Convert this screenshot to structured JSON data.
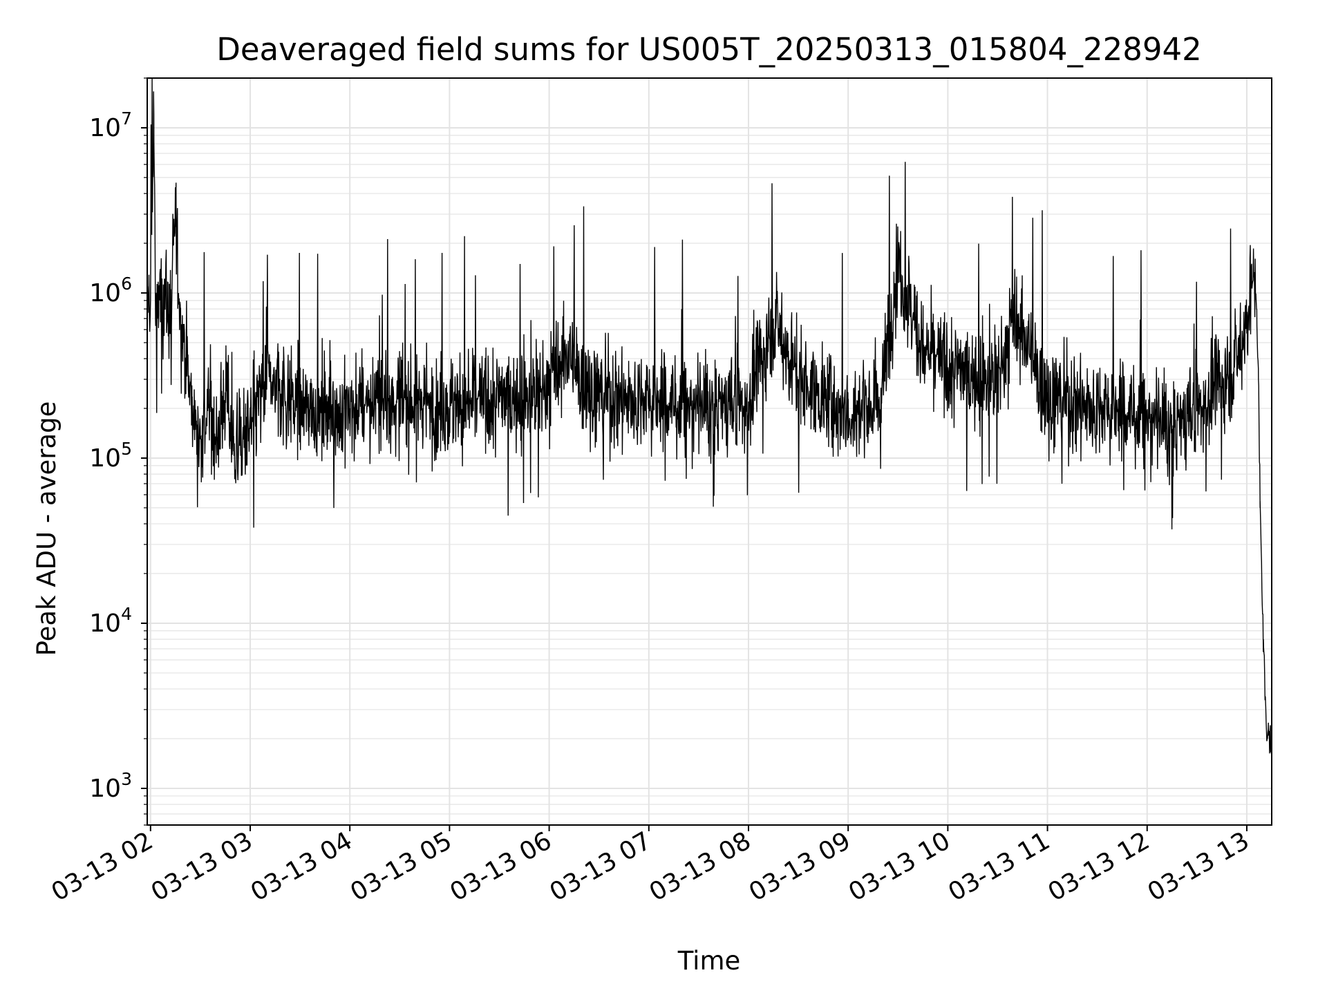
{
  "chart_data": {
    "type": "line",
    "title": "Deaveraged field sums for US005T_20250313_015804_228942",
    "xlabel": "Time",
    "ylabel": "Peak ADU - average",
    "yscale": "log",
    "ylim": [
      600,
      20000000
    ],
    "xlim": [
      "2025-03-13 01:58",
      "2025-03-13 13:15"
    ],
    "grid": true,
    "line_color": "#000000",
    "grid_color": "#e3e3e3",
    "x_ticks": [
      {
        "value": "2025-03-13 02:00",
        "label": "03-13 02"
      },
      {
        "value": "2025-03-13 03:00",
        "label": "03-13 03"
      },
      {
        "value": "2025-03-13 04:00",
        "label": "03-13 04"
      },
      {
        "value": "2025-03-13 05:00",
        "label": "03-13 05"
      },
      {
        "value": "2025-03-13 06:00",
        "label": "03-13 06"
      },
      {
        "value": "2025-03-13 07:00",
        "label": "03-13 07"
      },
      {
        "value": "2025-03-13 08:00",
        "label": "03-13 08"
      },
      {
        "value": "2025-03-13 09:00",
        "label": "03-13 09"
      },
      {
        "value": "2025-03-13 10:00",
        "label": "03-13 10"
      },
      {
        "value": "2025-03-13 11:00",
        "label": "03-13 11"
      },
      {
        "value": "2025-03-13 12:00",
        "label": "03-13 12"
      },
      {
        "value": "2025-03-13 13:00",
        "label": "03-13 13"
      }
    ],
    "y_ticks": [
      {
        "value": 1000,
        "base": "10",
        "exponent": "3"
      },
      {
        "value": 10000,
        "base": "10",
        "exponent": "4"
      },
      {
        "value": 100000,
        "base": "10",
        "exponent": "5"
      },
      {
        "value": 1000000,
        "base": "10",
        "exponent": "6"
      },
      {
        "value": 10000000,
        "base": "10",
        "exponent": "7"
      }
    ],
    "series": [
      {
        "x": [
          "2025-03-13 01:58",
          "2025-03-13 02:00",
          "2025-03-13 02:02",
          "2025-03-13 02:03",
          "2025-03-13 02:05",
          "2025-03-13 02:08",
          "2025-03-13 02:12",
          "2025-03-13 02:15",
          "2025-03-13 02:18",
          "2025-03-13 02:20",
          "2025-03-13 02:25",
          "2025-03-13 02:30",
          "2025-03-13 02:35",
          "2025-03-13 02:40",
          "2025-03-13 02:45",
          "2025-03-13 02:50",
          "2025-03-13 03:00",
          "2025-03-13 03:10",
          "2025-03-13 03:20",
          "2025-03-13 03:30",
          "2025-03-13 03:45",
          "2025-03-13 04:00",
          "2025-03-13 04:30",
          "2025-03-13 05:00",
          "2025-03-13 05:30",
          "2025-03-13 05:55",
          "2025-03-13 06:10",
          "2025-03-13 06:30",
          "2025-03-13 07:00",
          "2025-03-13 07:30",
          "2025-03-13 08:00",
          "2025-03-13 08:15",
          "2025-03-13 08:30",
          "2025-03-13 09:00",
          "2025-03-13 09:20",
          "2025-03-13 09:30",
          "2025-03-13 09:45",
          "2025-03-13 10:00",
          "2025-03-13 10:30",
          "2025-03-13 10:40",
          "2025-03-13 11:00",
          "2025-03-13 11:30",
          "2025-03-13 11:55",
          "2025-03-13 12:15",
          "2025-03-13 12:30",
          "2025-03-13 12:45",
          "2025-03-13 12:55",
          "2025-03-13 13:00",
          "2025-03-13 13:03",
          "2025-03-13 13:05",
          "2025-03-13 13:06",
          "2025-03-13 13:07",
          "2025-03-13 13:08",
          "2025-03-13 13:10",
          "2025-03-13 13:12",
          "2025-03-13 13:13",
          "2025-03-13 13:15"
        ],
        "values": [
          800000,
          900000,
          12000000,
          700000,
          900000,
          1000000,
          800000,
          2600000,
          700000,
          500000,
          200000,
          130000,
          200000,
          130000,
          250000,
          110000,
          150000,
          300000,
          250000,
          200000,
          200000,
          200000,
          230000,
          200000,
          230000,
          250000,
          400000,
          250000,
          220000,
          200000,
          220000,
          700000,
          300000,
          180000,
          250000,
          1500000,
          450000,
          350000,
          300000,
          700000,
          250000,
          200000,
          180000,
          150000,
          200000,
          300000,
          400000,
          700000,
          1100000,
          1200000,
          800000,
          300000,
          50000,
          8000,
          2000,
          2500,
          1500
        ]
      }
    ]
  }
}
